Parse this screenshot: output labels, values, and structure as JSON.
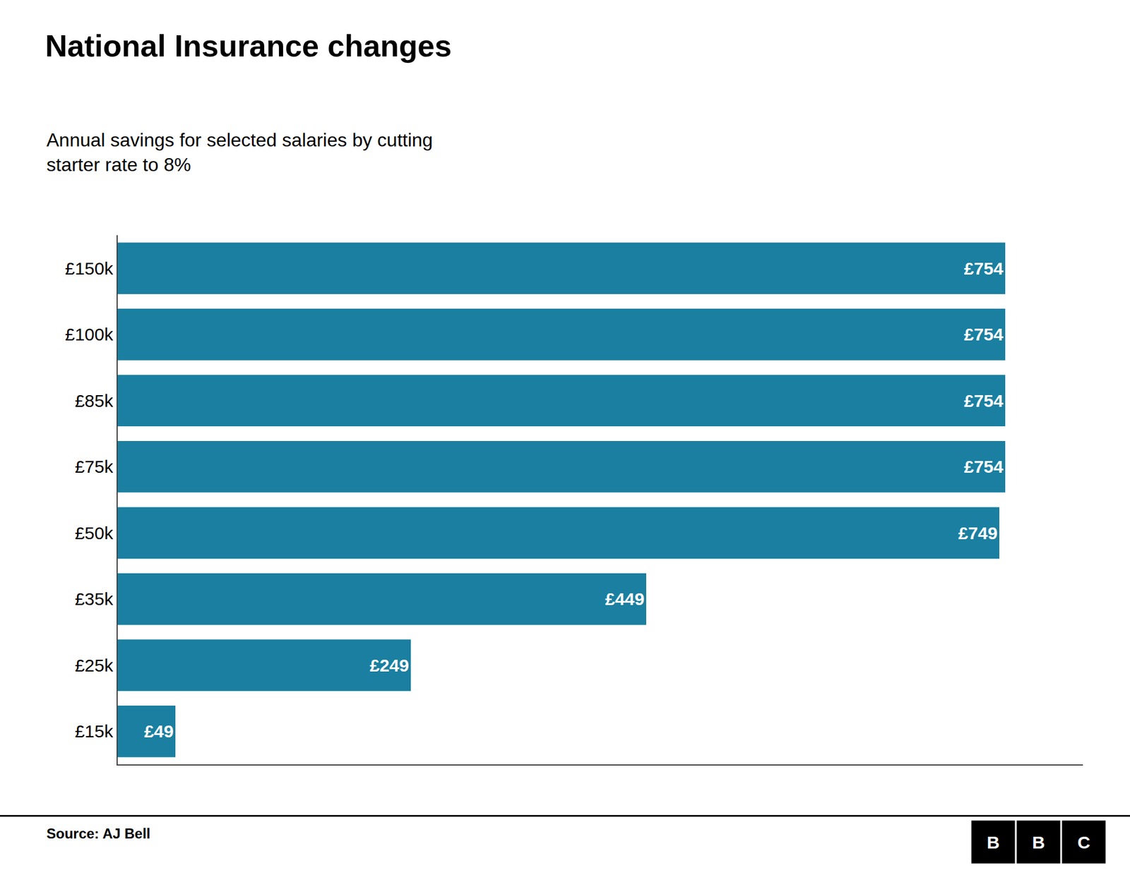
{
  "chart_data": {
    "type": "bar",
    "orientation": "horizontal",
    "title": "National Insurance changes",
    "subtitle": "Annual savings for selected salaries by cutting\nstarter rate to 8%",
    "categories": [
      "£150k",
      "£100k",
      "£85k",
      "£75k",
      "£50k",
      "£35k",
      "£25k",
      "£15k"
    ],
    "values": [
      754,
      754,
      754,
      754,
      749,
      449,
      249,
      49
    ],
    "value_labels": [
      "£754",
      "£754",
      "£754",
      "£754",
      "£749",
      "£449",
      "£249",
      "£49"
    ],
    "data_labels": true,
    "color": "#1a7fa0",
    "xlim": [
      0,
      820
    ],
    "grid": false,
    "tick_labels": "y",
    "annotations": [
      "Source: AJ Bell",
      "BBC"
    ]
  }
}
